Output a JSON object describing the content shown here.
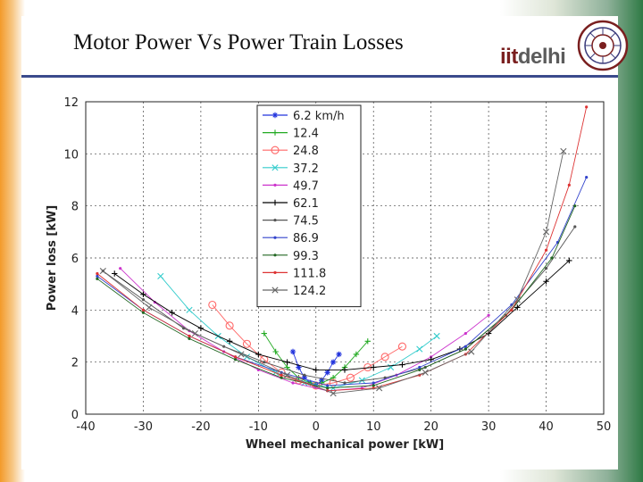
{
  "slide": {
    "title": "Motor Power Vs Power Train Losses",
    "logo": {
      "prefix": "iit",
      "suffix": "delhi"
    }
  },
  "colors": {
    "title_rule": "#3a4a8c",
    "logo_red": "#7a1f1f",
    "logo_gray": "#5c5c5c"
  },
  "chart_data": {
    "type": "line",
    "title": "",
    "xlabel": "Wheel mechanical power [kW]",
    "ylabel": "Power loss [kW]",
    "xlim": [
      -40,
      50
    ],
    "ylim": [
      0,
      12
    ],
    "xticks": [
      -40,
      -30,
      -20,
      -10,
      0,
      10,
      20,
      30,
      40,
      50
    ],
    "yticks": [
      0,
      2,
      4,
      6,
      8,
      10,
      12
    ],
    "grid": true,
    "legend_position": "top-center",
    "series": [
      {
        "name": "6.2 km/h",
        "color": "#2233dd",
        "marker": "*",
        "x": [
          -4,
          -3,
          -2,
          -1,
          0,
          1,
          2,
          3,
          4
        ],
        "y": [
          2.4,
          1.8,
          1.4,
          1.2,
          1.1,
          1.3,
          1.6,
          2.0,
          2.3
        ]
      },
      {
        "name": "12.4",
        "color": "#22aa22",
        "marker": "+",
        "x": [
          -9,
          -7,
          -5,
          -3,
          -1,
          1,
          3,
          5,
          7,
          9
        ],
        "y": [
          3.1,
          2.4,
          1.8,
          1.4,
          1.2,
          1.2,
          1.4,
          1.8,
          2.3,
          2.8
        ]
      },
      {
        "name": "24.8",
        "color": "#ff6666",
        "marker": "o",
        "x": [
          -18,
          -15,
          -12,
          -9,
          -6,
          -3,
          0,
          3,
          6,
          9,
          12,
          15
        ],
        "y": [
          4.2,
          3.4,
          2.7,
          2.1,
          1.6,
          1.3,
          1.1,
          1.2,
          1.4,
          1.8,
          2.2,
          2.6
        ]
      },
      {
        "name": "37.2",
        "color": "#33cccc",
        "marker": "x",
        "x": [
          -27,
          -22,
          -17,
          -12,
          -7,
          -2,
          3,
          8,
          13,
          18,
          21
        ],
        "y": [
          5.3,
          4.0,
          3.0,
          2.2,
          1.6,
          1.2,
          1.0,
          1.3,
          1.8,
          2.5,
          3.0
        ]
      },
      {
        "name": "49.7",
        "color": "#cc33cc",
        "marker": ".",
        "x": [
          -34,
          -28,
          -22,
          -16,
          -10,
          -4,
          2,
          8,
          14,
          20,
          26,
          30
        ],
        "y": [
          5.6,
          4.3,
          3.2,
          2.4,
          1.7,
          1.2,
          0.9,
          1.0,
          1.5,
          2.2,
          3.1,
          3.8
        ]
      },
      {
        "name": "62.1",
        "color": "#000000",
        "marker": "+",
        "x": [
          -35,
          -30,
          -25,
          -20,
          -15,
          -10,
          -5,
          0,
          5,
          10,
          15,
          20,
          25,
          30,
          35,
          40,
          44
        ],
        "y": [
          5.4,
          4.6,
          3.9,
          3.3,
          2.8,
          2.3,
          2.0,
          1.7,
          1.7,
          1.8,
          1.9,
          2.1,
          2.5,
          3.1,
          4.1,
          5.1,
          5.9
        ]
      },
      {
        "name": "74.5",
        "color": "#555555",
        "marker": ".",
        "x": [
          -37,
          -30,
          -23,
          -16,
          -9,
          -2,
          5,
          12,
          19,
          26,
          33,
          40,
          45
        ],
        "y": [
          5.5,
          4.4,
          3.3,
          2.6,
          2.0,
          1.5,
          1.2,
          1.4,
          1.8,
          2.5,
          3.8,
          5.6,
          7.2
        ]
      },
      {
        "name": "86.9",
        "color": "#3344cc",
        "marker": ".",
        "x": [
          -38,
          -30,
          -22,
          -14,
          -6,
          2,
          10,
          18,
          26,
          34,
          42,
          47
        ],
        "y": [
          5.3,
          4.0,
          3.0,
          2.2,
          1.6,
          1.1,
          1.2,
          1.8,
          2.6,
          4.2,
          6.6,
          9.1
        ]
      },
      {
        "name": "99.3",
        "color": "#226622",
        "marker": ".",
        "x": [
          -38,
          -30,
          -22,
          -14,
          -6,
          2,
          10,
          18,
          26,
          34,
          41,
          45
        ],
        "y": [
          5.2,
          3.9,
          2.9,
          2.1,
          1.4,
          1.0,
          1.1,
          1.7,
          2.5,
          4.0,
          6.0,
          8.0
        ]
      },
      {
        "name": "111.8",
        "color": "#dd3333",
        "marker": ".",
        "x": [
          -38,
          -30,
          -22,
          -14,
          -6,
          2,
          10,
          18,
          26,
          34,
          40,
          44,
          47
        ],
        "y": [
          5.4,
          4.0,
          3.0,
          2.2,
          1.5,
          0.9,
          1.0,
          1.5,
          2.3,
          4.0,
          6.3,
          8.8,
          11.8
        ]
      },
      {
        "name": "124.2",
        "color": "#666666",
        "marker": "x",
        "x": [
          -37,
          -29,
          -21,
          -13,
          -5,
          3,
          11,
          19,
          27,
          35,
          40,
          43
        ],
        "y": [
          5.5,
          4.1,
          3.1,
          2.3,
          1.5,
          0.8,
          1.0,
          1.6,
          2.4,
          4.4,
          7.0,
          10.1
        ]
      }
    ]
  }
}
